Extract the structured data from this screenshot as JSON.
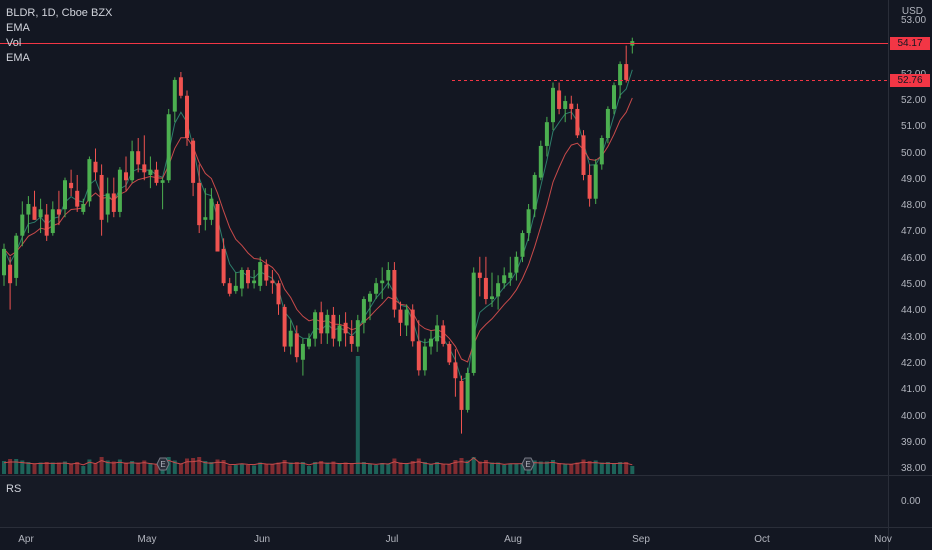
{
  "header": {
    "symbol_line": "BLDR, 1D, Cboe BZX",
    "indicators": [
      "EMA",
      "Vol",
      "EMA"
    ],
    "currency": "USD"
  },
  "price_axis": {
    "labels": [
      "53.00",
      "52.00",
      "52.00",
      "51.00",
      "50.00",
      "49.00",
      "48.00",
      "47.00",
      "46.00",
      "45.00",
      "44.00",
      "43.00",
      "42.00",
      "41.00",
      "40.00",
      "39.00",
      "38.00"
    ],
    "last_price": "54.17",
    "dotted_price": "52.76"
  },
  "time_axis": {
    "labels": [
      "Apr",
      "May",
      "Jun",
      "Jul",
      "Aug",
      "Sep",
      "Oct",
      "Nov"
    ]
  },
  "rs_pane": {
    "label": "RS",
    "value": "0.00"
  },
  "colors": {
    "up": "#26a69a",
    "up_bright": "#4caf50",
    "down": "#ef5350",
    "background": "#131722",
    "ema_fast": "#2e7d6b",
    "ema_slow": "#c84a4a",
    "last_line": "#f23645"
  },
  "icons": [
    "earnings-marker-icon"
  ],
  "chart_data": {
    "type": "candlestick",
    "interval": "1D",
    "ylim": [
      38,
      54.5
    ],
    "candles": [
      [
        45.3,
        46.5,
        44.9,
        46.3
      ],
      [
        45.7,
        46.0,
        44.0,
        45.0
      ],
      [
        45.2,
        46.9,
        44.9,
        46.8
      ],
      [
        46.8,
        48.1,
        46.4,
        47.6
      ],
      [
        47.6,
        48.3,
        46.9,
        48.0
      ],
      [
        47.9,
        48.5,
        47.4,
        47.4
      ],
      [
        47.5,
        48.2,
        46.9,
        47.8
      ],
      [
        47.6,
        48.0,
        46.6,
        46.8
      ],
      [
        46.9,
        48.1,
        46.8,
        47.8
      ],
      [
        47.8,
        48.5,
        47.2,
        47.6
      ],
      [
        47.8,
        49.0,
        47.5,
        48.9
      ],
      [
        48.8,
        49.3,
        48.3,
        48.6
      ],
      [
        48.5,
        49.1,
        47.7,
        47.9
      ],
      [
        47.7,
        48.2,
        47.6,
        48.0
      ],
      [
        48.1,
        49.8,
        47.9,
        49.7
      ],
      [
        49.6,
        50.1,
        48.9,
        49.2
      ],
      [
        49.1,
        49.5,
        46.8,
        47.4
      ],
      [
        47.6,
        49.0,
        47.3,
        48.4
      ],
      [
        48.4,
        49.0,
        47.5,
        47.7
      ],
      [
        47.7,
        49.4,
        47.5,
        49.3
      ],
      [
        49.2,
        49.8,
        48.5,
        48.9
      ],
      [
        48.9,
        50.4,
        48.8,
        50.0
      ],
      [
        50.0,
        50.5,
        49.2,
        49.5
      ],
      [
        49.5,
        50.6,
        48.9,
        49.2
      ],
      [
        49.1,
        49.8,
        48.6,
        49.3
      ],
      [
        49.3,
        49.6,
        48.7,
        48.8
      ],
      [
        48.8,
        49.0,
        47.8,
        48.9
      ],
      [
        48.9,
        51.6,
        48.8,
        51.4
      ],
      [
        51.5,
        52.8,
        51.1,
        52.7
      ],
      [
        52.8,
        53.0,
        52.0,
        52.1
      ],
      [
        52.1,
        52.3,
        50.2,
        50.5
      ],
      [
        50.4,
        50.5,
        48.3,
        48.8
      ],
      [
        48.8,
        49.5,
        46.9,
        47.2
      ],
      [
        47.4,
        48.6,
        47.0,
        47.5
      ],
      [
        47.4,
        48.6,
        47.2,
        48.2
      ],
      [
        48.0,
        48.1,
        46.2,
        46.2
      ],
      [
        46.3,
        46.7,
        44.9,
        45.0
      ],
      [
        45.0,
        45.2,
        44.5,
        44.6
      ],
      [
        44.7,
        45.4,
        44.6,
        44.9
      ],
      [
        44.8,
        45.6,
        44.5,
        45.5
      ],
      [
        45.5,
        45.6,
        44.8,
        45.0
      ],
      [
        45.0,
        45.5,
        44.8,
        45.1
      ],
      [
        44.9,
        46.0,
        44.7,
        45.8
      ],
      [
        45.7,
        45.9,
        44.9,
        45.1
      ],
      [
        45.1,
        45.5,
        44.6,
        45.0
      ],
      [
        45.0,
        45.1,
        43.8,
        44.2
      ],
      [
        44.1,
        44.2,
        42.4,
        42.6
      ],
      [
        42.6,
        43.6,
        42.3,
        43.2
      ],
      [
        43.1,
        43.4,
        42.0,
        42.2
      ],
      [
        42.1,
        42.9,
        41.5,
        42.7
      ],
      [
        42.6,
        43.1,
        42.5,
        42.9
      ],
      [
        42.9,
        44.0,
        42.6,
        43.9
      ],
      [
        43.9,
        44.3,
        42.7,
        43.1
      ],
      [
        43.1,
        44.0,
        42.7,
        43.8
      ],
      [
        43.8,
        44.1,
        42.6,
        42.9
      ],
      [
        42.8,
        43.8,
        42.6,
        43.4
      ],
      [
        43.5,
        43.9,
        42.6,
        43.1
      ],
      [
        43.0,
        43.6,
        42.4,
        42.7
      ],
      [
        42.6,
        43.8,
        42.4,
        43.6
      ],
      [
        43.5,
        44.5,
        43.1,
        44.4
      ],
      [
        44.3,
        44.7,
        43.6,
        44.6
      ],
      [
        44.6,
        45.2,
        44.4,
        45.0
      ],
      [
        45.0,
        45.6,
        44.4,
        45.1
      ],
      [
        45.1,
        45.8,
        44.8,
        45.5
      ],
      [
        45.5,
        45.8,
        43.7,
        44.0
      ],
      [
        44.0,
        44.3,
        43.0,
        43.5
      ],
      [
        43.4,
        44.2,
        43.0,
        44.0
      ],
      [
        44.0,
        44.2,
        42.6,
        42.8
      ],
      [
        42.8,
        43.6,
        41.5,
        41.7
      ],
      [
        41.7,
        42.9,
        41.5,
        42.6
      ],
      [
        42.6,
        43.2,
        42.3,
        42.9
      ],
      [
        42.8,
        43.8,
        42.4,
        43.4
      ],
      [
        43.4,
        43.6,
        42.6,
        42.7
      ],
      [
        42.7,
        42.8,
        41.9,
        42.0
      ],
      [
        42.0,
        42.5,
        40.7,
        41.4
      ],
      [
        41.3,
        41.5,
        39.3,
        40.2
      ],
      [
        40.2,
        41.8,
        40.1,
        41.6
      ],
      [
        41.6,
        45.6,
        41.5,
        45.4
      ],
      [
        45.4,
        46.0,
        44.5,
        45.2
      ],
      [
        45.2,
        46.0,
        44.2,
        44.4
      ],
      [
        44.4,
        45.4,
        44.1,
        44.5
      ],
      [
        44.5,
        45.3,
        44.0,
        45.0
      ],
      [
        45.0,
        45.6,
        44.8,
        45.3
      ],
      [
        45.2,
        46.0,
        44.9,
        45.4
      ],
      [
        45.4,
        46.2,
        45.1,
        46.0
      ],
      [
        46.0,
        47.0,
        45.8,
        46.9
      ],
      [
        46.9,
        48.0,
        46.6,
        47.8
      ],
      [
        47.8,
        49.2,
        47.5,
        49.1
      ],
      [
        49.0,
        50.4,
        48.9,
        50.2
      ],
      [
        50.2,
        51.3,
        49.8,
        51.1
      ],
      [
        51.1,
        52.6,
        50.8,
        52.4
      ],
      [
        52.3,
        52.6,
        51.4,
        51.6
      ],
      [
        51.6,
        52.1,
        51.1,
        51.9
      ],
      [
        51.8,
        52.1,
        51.2,
        51.6
      ],
      [
        51.6,
        51.8,
        50.5,
        50.6
      ],
      [
        50.6,
        50.8,
        48.9,
        49.1
      ],
      [
        49.1,
        49.5,
        47.9,
        48.2
      ],
      [
        48.2,
        49.7,
        48.0,
        49.5
      ],
      [
        49.5,
        50.6,
        49.3,
        50.5
      ],
      [
        50.5,
        51.7,
        50.3,
        51.6
      ],
      [
        51.6,
        52.6,
        51.4,
        52.5
      ],
      [
        52.5,
        53.4,
        52.0,
        53.3
      ],
      [
        53.3,
        54.0,
        52.6,
        52.7
      ],
      [
        54.0,
        54.3,
        53.7,
        54.17
      ]
    ]
  }
}
